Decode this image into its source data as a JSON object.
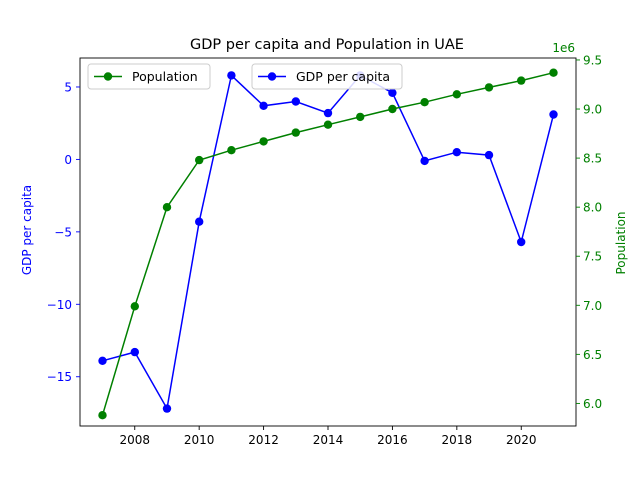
{
  "chart_data": {
    "type": "line",
    "title": "GDP per capita and Population in UAE",
    "x": [
      2007,
      2008,
      2009,
      2010,
      2011,
      2012,
      2013,
      2014,
      2015,
      2016,
      2017,
      2018,
      2019,
      2020,
      2021
    ],
    "x_ticks": [
      "2008",
      "2010",
      "2012",
      "2014",
      "2016",
      "2018",
      "2020"
    ],
    "xlim": [
      2006.3,
      2021.7
    ],
    "left_axis": {
      "label": "GDP per capita",
      "color": "#0000ff",
      "ylim": [
        -18.4,
        7.0
      ],
      "ticks": [
        5,
        0,
        -5,
        -10,
        -15
      ],
      "tick_labels": [
        "5",
        "0",
        "−5",
        "−10",
        "−15"
      ]
    },
    "right_axis": {
      "label": "Population",
      "color": "#008000",
      "offset_text": "1e6",
      "ylim": [
        5.77,
        9.52
      ],
      "ticks": [
        6.0,
        6.5,
        7.0,
        7.5,
        8.0,
        8.5,
        9.0,
        9.5
      ],
      "tick_labels": [
        "6.0",
        "6.5",
        "7.0",
        "7.5",
        "8.0",
        "8.5",
        "9.0",
        "9.5"
      ]
    },
    "series": [
      {
        "name": "GDP per capita",
        "axis": "left",
        "color": "#0000ff",
        "values": [
          -13.9,
          -13.3,
          -17.2,
          -4.3,
          5.8,
          3.7,
          4.0,
          3.2,
          5.8,
          4.6,
          -0.1,
          0.5,
          0.3,
          -5.7,
          3.1
        ]
      },
      {
        "name": "Population",
        "axis": "right",
        "color": "#008000",
        "values": [
          5.88,
          6.99,
          8.0,
          8.48,
          8.58,
          8.67,
          8.76,
          8.84,
          8.92,
          9.0,
          9.07,
          9.15,
          9.22,
          9.29,
          9.37
        ]
      }
    ],
    "legends": [
      {
        "placement": "upper-left",
        "entries": [
          "Population"
        ]
      },
      {
        "placement": "upper-center",
        "entries": [
          "GDP per capita"
        ]
      }
    ],
    "grid": false
  }
}
